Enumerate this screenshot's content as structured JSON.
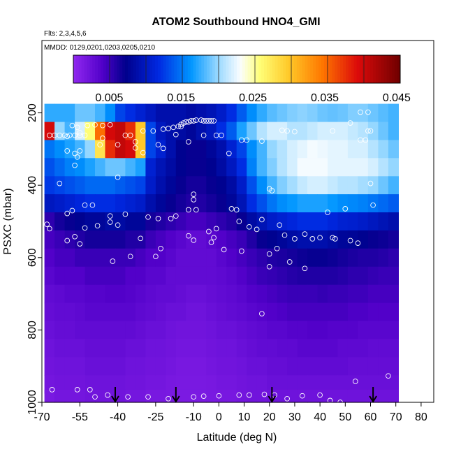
{
  "chart_data": {
    "type": "heatmap",
    "title": "ATOM2 Southbound HNO4_GMI",
    "note_flights": "Flts: 2,3,4,5,6",
    "note_dates": "MMDD: 0129,0201,0203,0205,0210",
    "xlabel": "Latitude (deg N)",
    "ylabel": "PSXC (mbar)",
    "xlim": [
      -70,
      85
    ],
    "ylim": [
      1000,
      0
    ],
    "x_ticks": [
      "-70",
      "-55",
      "-40",
      "-25",
      "-10",
      "0",
      "10",
      "20",
      "30",
      "40",
      "50",
      "60",
      "70",
      "80"
    ],
    "x_tick_values": [
      -70,
      -55,
      -40,
      -25,
      -10,
      0,
      10,
      20,
      30,
      40,
      50,
      60,
      70,
      80
    ],
    "y_ticks": [
      "200",
      "400",
      "600",
      "800",
      "1000"
    ],
    "y_tick_values": [
      200,
      400,
      600,
      800,
      1000
    ],
    "colorbar": {
      "ticks": [
        "0.005",
        "0.015",
        "0.025",
        "0.035",
        "0.045"
      ],
      "tick_values": [
        0.005,
        0.015,
        0.025,
        0.035,
        0.045
      ],
      "range": [
        0.0,
        0.0455
      ]
    },
    "arrows_latitude": [
      -41,
      -17,
      21,
      61
    ],
    "lat_bins": [
      -67,
      -63,
      -59,
      -55,
      -51,
      -47,
      -43,
      -39,
      -35,
      -31,
      -27,
      -23,
      -19,
      -15,
      -11,
      -7,
      -3,
      1,
      5,
      9,
      13,
      17,
      21,
      25,
      29,
      33,
      37,
      41,
      45,
      49,
      53,
      57,
      61,
      65,
      69
    ],
    "pressure_bins": [
      200,
      250,
      300,
      350,
      400,
      450,
      500,
      550,
      600,
      650,
      700,
      750,
      800,
      850,
      900,
      950,
      990
    ],
    "values": [
      [
        0.0175,
        0.0175,
        0.0175,
        0.019,
        0.019,
        0.018,
        0.016,
        0.013,
        0.012,
        0.011,
        0.01,
        0.009,
        0.009,
        0.009,
        0.0085,
        0.009,
        0.0095,
        0.0105,
        0.012,
        0.014,
        0.016,
        0.0175,
        0.0185,
        0.019,
        0.0195,
        0.0198,
        0.0195,
        0.019,
        0.0188,
        0.019,
        0.0195,
        0.0195,
        0.019,
        0.0185,
        0.018
      ],
      [
        0.04,
        0.02,
        0.018,
        0.022,
        0.026,
        0.035,
        0.04,
        0.041,
        0.038,
        0.03,
        0.013,
        0.01,
        0.009,
        0.0085,
        0.008,
        0.009,
        0.01,
        0.012,
        0.014,
        0.017,
        0.019,
        0.021,
        0.022,
        0.022,
        0.021,
        0.021,
        0.0215,
        0.022,
        0.022,
        0.022,
        0.0215,
        0.021,
        0.02,
        0.019,
        0.018
      ],
      [
        0.015,
        0.016,
        0.017,
        0.018,
        0.02,
        0.028,
        0.038,
        0.041,
        0.04,
        0.03,
        0.013,
        0.011,
        0.009,
        0.0075,
        0.007,
        0.007,
        0.008,
        0.009,
        0.011,
        0.013,
        0.016,
        0.018,
        0.02,
        0.021,
        0.022,
        0.0225,
        0.023,
        0.0228,
        0.0225,
        0.0225,
        0.022,
        0.022,
        0.021,
        0.02,
        0.019
      ],
      [
        0.0135,
        0.0145,
        0.0155,
        0.016,
        0.017,
        0.018,
        0.019,
        0.019,
        0.018,
        0.017,
        0.011,
        0.0095,
        0.0085,
        0.0075,
        0.007,
        0.007,
        0.0075,
        0.0085,
        0.01,
        0.012,
        0.0155,
        0.018,
        0.0195,
        0.021,
        0.022,
        0.023,
        0.023,
        0.023,
        0.0225,
        0.0225,
        0.0225,
        0.0225,
        0.022,
        0.021,
        0.02
      ],
      [
        0.0125,
        0.013,
        0.0135,
        0.014,
        0.0145,
        0.0145,
        0.0145,
        0.014,
        0.0135,
        0.013,
        0.0105,
        0.009,
        0.008,
        0.007,
        0.0065,
        0.0065,
        0.007,
        0.0075,
        0.0085,
        0.0105,
        0.0135,
        0.016,
        0.018,
        0.0195,
        0.0205,
        0.0215,
        0.022,
        0.022,
        0.0215,
        0.021,
        0.021,
        0.0205,
        0.02,
        0.019,
        0.018
      ],
      [
        0.01,
        0.0105,
        0.011,
        0.0115,
        0.012,
        0.012,
        0.012,
        0.0115,
        0.011,
        0.0105,
        0.009,
        0.008,
        0.007,
        0.0065,
        0.006,
        0.006,
        0.0065,
        0.007,
        0.008,
        0.0095,
        0.012,
        0.0135,
        0.015,
        0.016,
        0.0165,
        0.017,
        0.017,
        0.017,
        0.0165,
        0.016,
        0.0158,
        0.0155,
        0.015,
        0.0145,
        0.014
      ],
      [
        0.0055,
        0.0065,
        0.007,
        0.0075,
        0.008,
        0.008,
        0.0085,
        0.0085,
        0.008,
        0.008,
        0.0065,
        0.006,
        0.0055,
        0.005,
        0.0045,
        0.0045,
        0.005,
        0.0055,
        0.006,
        0.007,
        0.0085,
        0.0095,
        0.0105,
        0.011,
        0.0115,
        0.012,
        0.012,
        0.012,
        0.0115,
        0.011,
        0.0108,
        0.0105,
        0.01,
        0.0095,
        0.009
      ],
      [
        0.0045,
        0.005,
        0.0055,
        0.006,
        0.0065,
        0.0065,
        0.0065,
        0.0065,
        0.006,
        0.006,
        0.005,
        0.0045,
        0.004,
        0.0035,
        0.003,
        0.003,
        0.0035,
        0.004,
        0.0045,
        0.005,
        0.006,
        0.007,
        0.0075,
        0.008,
        0.0085,
        0.009,
        0.009,
        0.009,
        0.0085,
        0.008,
        0.0078,
        0.0075,
        0.007,
        0.0068,
        0.0065
      ],
      [
        0.004,
        0.0045,
        0.0045,
        0.005,
        0.005,
        0.005,
        0.005,
        0.005,
        0.005,
        0.0045,
        0.004,
        0.004,
        0.0035,
        0.003,
        0.003,
        0.003,
        0.003,
        0.0035,
        0.004,
        0.0045,
        0.005,
        0.0055,
        0.006,
        0.0062,
        0.0065,
        0.0068,
        0.007,
        0.007,
        0.0068,
        0.0065,
        0.0062,
        0.006,
        0.006,
        0.0058,
        0.0055
      ],
      [
        0.0035,
        0.004,
        0.004,
        0.004,
        0.0045,
        0.0045,
        0.0045,
        0.0045,
        0.004,
        0.004,
        0.0035,
        0.0035,
        0.003,
        0.003,
        0.003,
        0.003,
        0.003,
        0.0032,
        0.0035,
        0.004,
        0.0045,
        0.005,
        0.0052,
        0.0055,
        0.0058,
        0.006,
        0.006,
        0.006,
        0.006,
        0.0058,
        0.0055,
        0.0055,
        0.0052,
        0.005,
        0.005
      ],
      [
        0.003,
        0.0032,
        0.0035,
        0.0035,
        0.0038,
        0.0038,
        0.004,
        0.004,
        0.0038,
        0.0035,
        0.0032,
        0.003,
        0.003,
        0.0028,
        0.0025,
        0.0025,
        0.0028,
        0.003,
        0.0032,
        0.0035,
        0.004,
        0.0042,
        0.0045,
        0.0048,
        0.005,
        0.005,
        0.005,
        0.0052,
        0.005,
        0.005,
        0.0048,
        0.0048,
        0.0045,
        0.0045,
        0.0045
      ],
      [
        0.0028,
        0.003,
        0.003,
        0.0032,
        0.0035,
        0.0035,
        0.0035,
        0.0035,
        0.0035,
        0.0032,
        0.003,
        0.0028,
        0.0025,
        0.0025,
        0.0022,
        0.0022,
        0.0025,
        0.0028,
        0.003,
        0.0032,
        0.0035,
        0.0038,
        0.004,
        0.0042,
        0.0045,
        0.0045,
        0.0045,
        0.0045,
        0.0045,
        0.0045,
        0.0042,
        0.0042,
        0.004,
        0.004,
        0.004
      ],
      [
        0.0025,
        0.0028,
        0.0028,
        0.003,
        0.003,
        0.003,
        0.003,
        0.003,
        0.003,
        0.0028,
        0.0025,
        0.0025,
        0.0022,
        0.002,
        0.002,
        0.002,
        0.0022,
        0.0025,
        0.0025,
        0.0028,
        0.003,
        0.0032,
        0.0035,
        0.0035,
        0.0038,
        0.0038,
        0.004,
        0.004,
        0.0038,
        0.0038,
        0.0038,
        0.0035,
        0.0035,
        0.0035,
        0.0035
      ],
      [
        0.0022,
        0.0025,
        0.0025,
        0.0025,
        0.0028,
        0.0028,
        0.0028,
        0.0028,
        0.0025,
        0.0025,
        0.0022,
        0.0022,
        0.002,
        0.0018,
        0.0018,
        0.0018,
        0.002,
        0.0022,
        0.0022,
        0.0025,
        0.0028,
        0.003,
        0.003,
        0.0032,
        0.0032,
        0.0035,
        0.0035,
        0.0035,
        0.0035,
        0.0032,
        0.0032,
        0.0032,
        0.003,
        0.003,
        0.003
      ],
      [
        0.002,
        0.0022,
        0.0022,
        0.0022,
        0.0025,
        0.0025,
        0.0025,
        0.0025,
        0.0022,
        0.0022,
        0.002,
        0.002,
        0.0018,
        0.0016,
        0.0016,
        0.0016,
        0.0018,
        0.002,
        0.002,
        0.0022,
        0.0025,
        0.0025,
        0.0028,
        0.0028,
        0.003,
        0.003,
        0.003,
        0.003,
        0.003,
        0.003,
        0.0028,
        0.0028,
        0.0028,
        0.0028,
        0.0028
      ],
      [
        0.0018,
        0.002,
        0.002,
        0.002,
        0.0022,
        0.0022,
        0.0022,
        0.0022,
        0.002,
        0.002,
        0.0018,
        0.0018,
        0.0016,
        0.0015,
        0.0015,
        0.0015,
        0.0016,
        0.0018,
        0.0018,
        0.002,
        0.0022,
        0.0022,
        0.0025,
        0.0025,
        0.0025,
        0.0025,
        0.0025,
        0.0025,
        0.0025,
        0.0025,
        0.0025,
        0.0025,
        0.0025,
        0.0025,
        0.0025
      ],
      [
        0.0015,
        0.0018,
        0.0018,
        0.0018,
        0.002,
        0.002,
        0.002,
        0.002,
        0.0018,
        0.0018,
        0.0016,
        0.0016,
        0.0015,
        0.0014,
        0.0014,
        0.0014,
        0.0015,
        0.0016,
        0.0016,
        0.0018,
        0.002,
        0.002,
        0.0022,
        0.0022,
        0.0022,
        0.0022,
        0.0022,
        0.0022,
        0.0022,
        0.0022,
        0.0022,
        0.0022,
        0.0022,
        0.0022,
        0.0022
      ]
    ],
    "observations": [
      [
        -55,
        255
      ],
      [
        -52,
        235
      ],
      [
        -49,
        233
      ],
      [
        -46,
        235
      ],
      [
        -43,
        233
      ],
      [
        -22,
        245
      ],
      [
        -20,
        243
      ],
      [
        -18,
        240
      ],
      [
        -16,
        237
      ],
      [
        -15,
        238
      ],
      [
        -67,
        262
      ],
      [
        -65,
        262
      ],
      [
        -63,
        262
      ],
      [
        -61,
        262
      ],
      [
        -59,
        262
      ],
      [
        -57,
        262
      ],
      [
        -55,
        262
      ],
      [
        -53,
        262
      ],
      [
        -37,
        262
      ],
      [
        -35,
        262
      ],
      [
        -6,
        262
      ],
      [
        -1,
        262
      ],
      [
        1,
        262
      ],
      [
        -24,
        288
      ],
      [
        -47,
        288
      ],
      [
        -12,
        280
      ],
      [
        -17,
        260
      ],
      [
        9,
        275
      ],
      [
        11,
        275
      ],
      [
        17,
        278
      ],
      [
        25,
        248
      ],
      [
        27,
        250
      ],
      [
        30,
        252
      ],
      [
        45,
        250
      ],
      [
        56,
        275
      ],
      [
        58,
        275
      ],
      [
        60,
        250
      ],
      [
        59,
        250
      ],
      [
        -56,
        322
      ],
      [
        -60,
        305
      ],
      [
        -57,
        312
      ],
      [
        -55,
        305
      ],
      [
        -57,
        345
      ],
      [
        -40,
        378
      ],
      [
        21,
        415
      ],
      [
        20,
        410
      ],
      [
        60,
        395
      ],
      [
        -63,
        395
      ],
      [
        4,
        312
      ],
      [
        -30,
        310
      ],
      [
        -22,
        298
      ],
      [
        -40,
        288
      ],
      [
        -60,
        265
      ],
      [
        -26,
        250
      ],
      [
        -30,
        250
      ],
      [
        -15,
        232
      ],
      [
        -14,
        228
      ],
      [
        -13,
        225
      ],
      [
        -12,
        225
      ],
      [
        -11,
        222
      ],
      [
        -10,
        222
      ],
      [
        -9,
        220
      ],
      [
        -7,
        220
      ],
      [
        -6,
        222
      ],
      [
        -5,
        222
      ],
      [
        -4,
        222
      ],
      [
        -3,
        222
      ],
      [
        -2,
        222
      ],
      [
        52,
        228
      ],
      [
        56,
        198
      ],
      [
        59,
        198
      ],
      [
        -58,
        235
      ],
      [
        -56,
        240
      ],
      [
        -46,
        270
      ],
      [
        -33,
        280
      ],
      [
        -33,
        297
      ],
      [
        -10,
        425
      ],
      [
        -10,
        440
      ],
      [
        5,
        465
      ],
      [
        7,
        468
      ],
      [
        -9,
        468
      ],
      [
        -12,
        468
      ],
      [
        -17,
        485
      ],
      [
        -19,
        492
      ],
      [
        -37,
        480
      ],
      [
        -43,
        485
      ],
      [
        -50,
        455
      ],
      [
        -53,
        455
      ],
      [
        -58,
        470
      ],
      [
        -60,
        478
      ],
      [
        -68,
        508
      ],
      [
        -67,
        520
      ],
      [
        -53,
        518
      ],
      [
        -48,
        512
      ],
      [
        -43,
        502
      ],
      [
        -40,
        510
      ],
      [
        -28,
        488
      ],
      [
        -24,
        492
      ],
      [
        8,
        500
      ],
      [
        12,
        515
      ],
      [
        15,
        522
      ],
      [
        17,
        495
      ],
      [
        24,
        510
      ],
      [
        26,
        538
      ],
      [
        30,
        548
      ],
      [
        34,
        535
      ],
      [
        37,
        548
      ],
      [
        40,
        545
      ],
      [
        43,
        475
      ],
      [
        46,
        548
      ],
      [
        50,
        465
      ],
      [
        52,
        553
      ],
      [
        55,
        560
      ],
      [
        61,
        455
      ],
      [
        -60,
        553
      ],
      [
        -55,
        562
      ],
      [
        -31,
        547
      ],
      [
        -3,
        558
      ],
      [
        2,
        578
      ],
      [
        9,
        582
      ],
      [
        20,
        590
      ],
      [
        23,
        575
      ],
      [
        28,
        612
      ],
      [
        34,
        630
      ],
      [
        -42,
        610
      ],
      [
        -35,
        597
      ],
      [
        -25,
        597
      ],
      [
        -23,
        575
      ],
      [
        -10,
        552
      ],
      [
        -4,
        528
      ],
      [
        -2,
        545
      ],
      [
        -12,
        540
      ],
      [
        45,
        545
      ],
      [
        -57,
        542
      ],
      [
        20,
        625
      ],
      [
        -1,
        520
      ],
      [
        17,
        755
      ],
      [
        48,
        1000
      ],
      [
        54,
        942
      ],
      [
        67,
        927
      ],
      [
        -66,
        965
      ],
      [
        -56,
        965
      ],
      [
        -51,
        965
      ],
      [
        -49,
        985
      ],
      [
        -44,
        980
      ],
      [
        -36,
        985
      ],
      [
        -28,
        985
      ],
      [
        -20,
        990
      ],
      [
        -10,
        985
      ],
      [
        -6,
        983
      ],
      [
        0,
        982
      ],
      [
        8,
        980
      ],
      [
        12,
        980
      ],
      [
        18,
        978
      ],
      [
        22,
        980
      ],
      [
        27,
        990
      ],
      [
        33,
        982
      ],
      [
        40,
        980
      ],
      [
        44,
        995
      ]
    ]
  }
}
